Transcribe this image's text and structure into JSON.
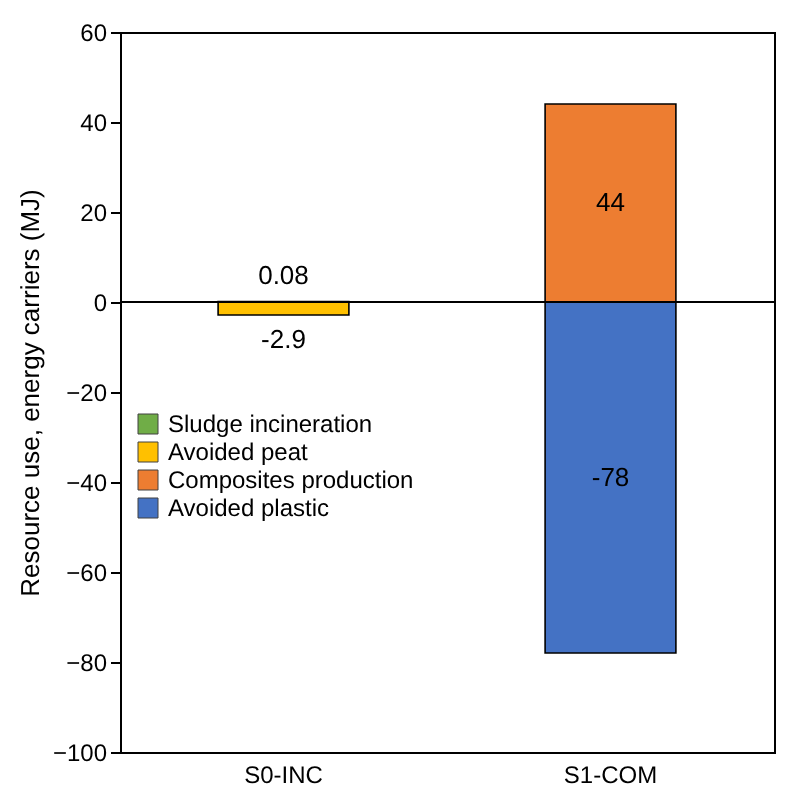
{
  "chart_data": {
    "type": "bar",
    "stacked": true,
    "ylabel": "Resource use, energy carriers (MJ)",
    "categories": [
      "S0-INC",
      "S1-COM"
    ],
    "series": [
      {
        "name": "Sludge incineration",
        "color": "#70ad47",
        "values": [
          0.08,
          null
        ]
      },
      {
        "name": "Avoided peat",
        "color": "#ffc000",
        "values": [
          -2.9,
          null
        ]
      },
      {
        "name": "Composites production",
        "color": "#ed7d31",
        "values": [
          null,
          44
        ]
      },
      {
        "name": "Avoided plastic",
        "color": "#4472c4",
        "values": [
          null,
          -78
        ]
      }
    ],
    "ylim": [
      -100,
      60
    ],
    "yticks": [
      -100,
      -80,
      -60,
      -40,
      -20,
      0,
      20,
      40,
      60
    ],
    "legend": "bottom left",
    "data_labels": true
  }
}
